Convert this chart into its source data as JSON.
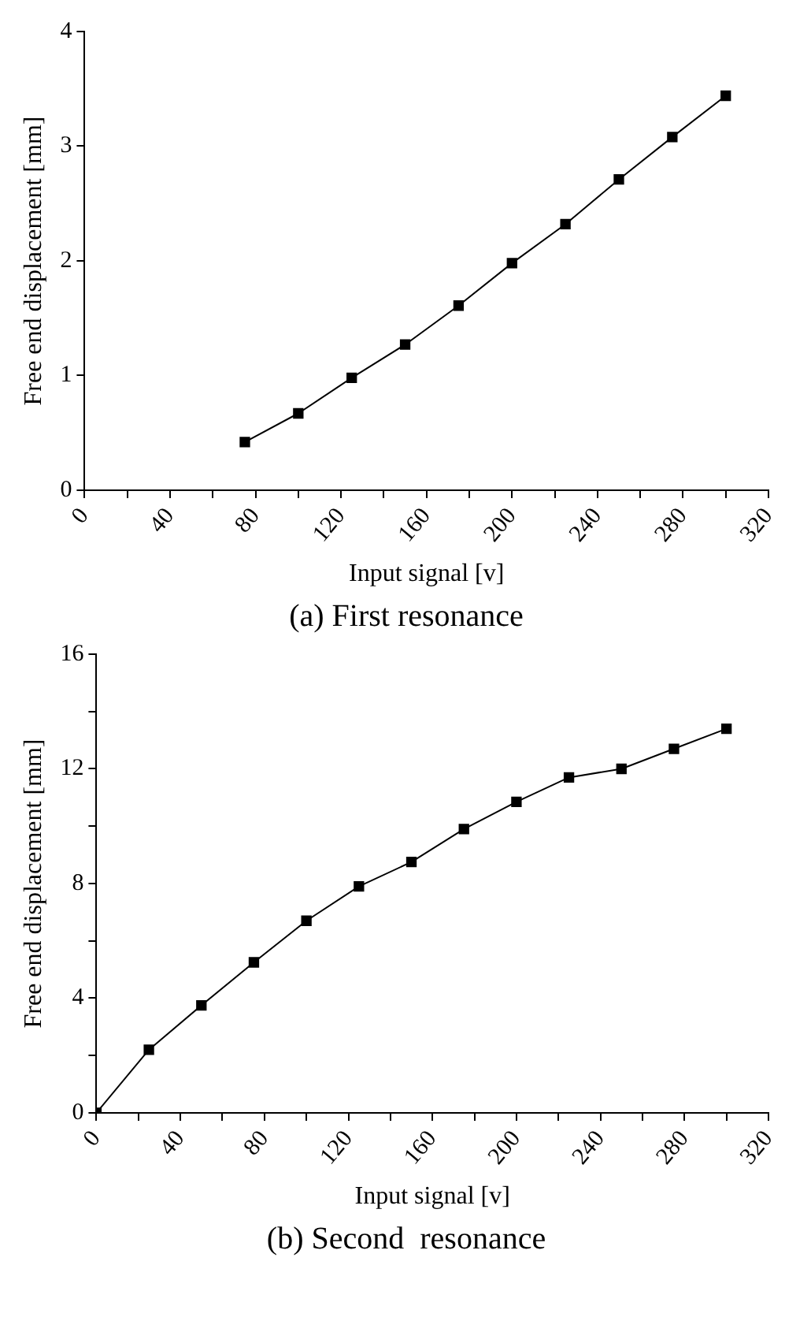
{
  "chart_data": [
    {
      "type": "line",
      "xlabel": "Input signal [v]",
      "ylabel": "Free end displacement [mm]",
      "annotations": [
        "(a) First resonance"
      ],
      "marker": "square",
      "line_style": "solid",
      "grid": false,
      "legend": false,
      "x": [
        75,
        100,
        125,
        150,
        175,
        200,
        225,
        250,
        275,
        300
      ],
      "series": [
        {
          "color": "#000000",
          "values": [
            0.42,
            0.67,
            0.98,
            1.27,
            1.61,
            1.98,
            2.32,
            2.71,
            3.08,
            3.44
          ]
        }
      ],
      "xlim": [
        0,
        320
      ],
      "xticks": [
        0,
        {
          "value": 20,
          "label": null
        },
        40,
        {
          "value": 60,
          "label": null
        },
        80,
        {
          "value": 100,
          "label": null
        },
        120,
        {
          "value": 140,
          "label": null
        },
        160,
        {
          "value": 180,
          "label": null
        },
        200,
        {
          "value": 220,
          "label": null
        },
        240,
        {
          "value": 260,
          "label": null
        },
        280,
        {
          "value": 300,
          "label": null
        },
        320
      ],
      "ylim": [
        0,
        4
      ],
      "yticks": [
        0,
        1,
        2,
        3,
        4
      ]
    },
    {
      "type": "line",
      "xlabel": "Input signal [v]",
      "ylabel": "Free end displacement [mm]",
      "annotations": [
        "(b) Second  resonance"
      ],
      "marker": "square",
      "line_style": "solid",
      "grid": false,
      "legend": false,
      "x": [
        0,
        25,
        50,
        75,
        100,
        125,
        150,
        175,
        200,
        225,
        250,
        275,
        300
      ],
      "series": [
        {
          "color": "#000000",
          "values": [
            0,
            2.2,
            3.75,
            5.25,
            6.7,
            7.9,
            8.75,
            9.9,
            10.85,
            11.7,
            12.0,
            12.7,
            13.4
          ]
        }
      ],
      "xlim": [
        0,
        320
      ],
      "xticks": [
        0,
        {
          "value": 20,
          "label": null
        },
        40,
        {
          "value": 60,
          "label": null
        },
        80,
        {
          "value": 100,
          "label": null
        },
        120,
        {
          "value": 140,
          "label": null
        },
        160,
        {
          "value": 180,
          "label": null
        },
        200,
        {
          "value": 220,
          "label": null
        },
        240,
        {
          "value": 260,
          "label": null
        },
        280,
        {
          "value": 300,
          "label": null
        },
        320
      ],
      "ylim": [
        0,
        16
      ],
      "yticks": [
        0,
        {
          "value": 2,
          "label": null
        },
        4,
        {
          "value": 6,
          "label": null
        },
        8,
        {
          "value": 10,
          "label": null
        },
        12,
        {
          "value": 14,
          "label": null
        },
        16
      ]
    }
  ]
}
